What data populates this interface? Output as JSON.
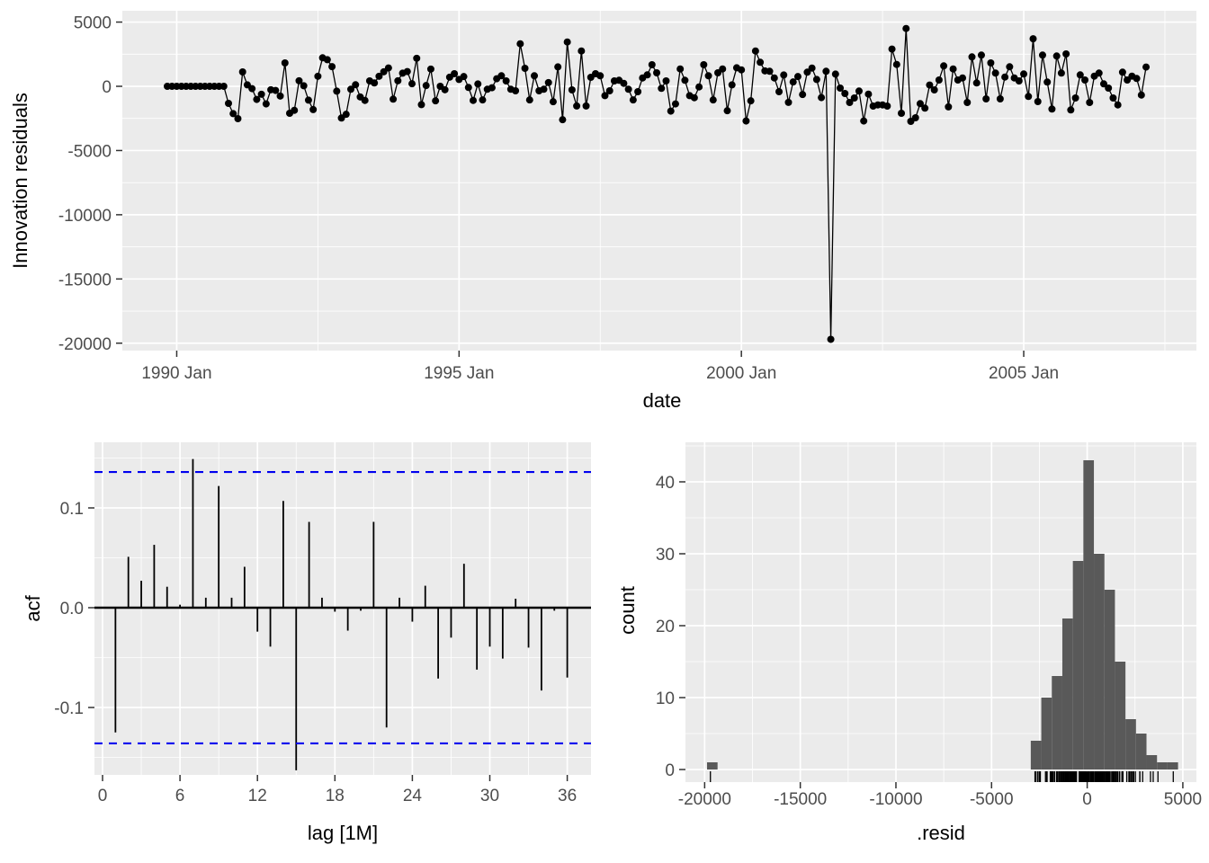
{
  "figure": {
    "background": "#FFFFFF",
    "panel_bg": "#EBEBEB",
    "grid_color": "#FFFFFF",
    "axis_text_color": "#4D4D4D",
    "axis_title_color": "#000000",
    "tick_mark_color": "#333333",
    "series_color": "#000000",
    "hist_fill": "#595959",
    "conf_line_color": "#0000EE"
  },
  "chart_data": [
    {
      "type": "line",
      "id": "innovation-residuals-time-plot",
      "xlabel": "date",
      "ylabel": "Innovation residuals",
      "x_start": "1989 Nov",
      "frequency": "monthly",
      "x_tick_labels": [
        "1990 Jan",
        "1995 Jan",
        "2000 Jan",
        "2005 Jan"
      ],
      "x_tick_month_index": [
        2,
        62,
        122,
        182
      ],
      "x_minor_month_index": [
        32,
        92,
        152,
        212
      ],
      "y_ticks": [
        5000,
        0,
        -5000,
        -10000,
        -15000,
        -20000
      ],
      "y_minor": [
        2500,
        -2500,
        -7500,
        -12500,
        -17500
      ],
      "ylim": [
        -20600,
        5100
      ],
      "points_shown": true,
      "values": [
        0,
        0,
        0,
        0,
        0,
        0,
        0,
        0,
        0,
        0,
        0,
        0,
        0,
        -1330,
        -2130,
        -2520,
        1120,
        110,
        -180,
        -1020,
        -620,
        -1370,
        -270,
        -320,
        -760,
        1820,
        -2100,
        -1870,
        430,
        40,
        -1080,
        -1810,
        780,
        2220,
        2070,
        1530,
        -380,
        -2470,
        -2180,
        -230,
        120,
        -830,
        -1100,
        420,
        260,
        780,
        1130,
        1430,
        -1000,
        430,
        1020,
        1150,
        200,
        2180,
        -1430,
        60,
        1340,
        -1130,
        0,
        -270,
        710,
        980,
        530,
        760,
        -90,
        -1100,
        180,
        -1060,
        -230,
        -110,
        590,
        820,
        420,
        -230,
        -350,
        3310,
        1400,
        -1060,
        820,
        -350,
        -230,
        290,
        -1200,
        1510,
        -2600,
        3450,
        -280,
        -1530,
        2750,
        -1530,
        700,
        980,
        820,
        -730,
        -350,
        420,
        470,
        230,
        -230,
        -1060,
        -420,
        650,
        890,
        1680,
        1050,
        -160,
        420,
        -1930,
        -1370,
        1350,
        470,
        -730,
        -890,
        -50,
        1680,
        820,
        -1060,
        1050,
        1350,
        -1900,
        110,
        1440,
        1280,
        -2700,
        -1130,
        2750,
        1870,
        1200,
        1170,
        650,
        -420,
        880,
        -1250,
        340,
        760,
        -640,
        1100,
        1420,
        530,
        -880,
        1170,
        -19700,
        950,
        -140,
        -560,
        -1260,
        -910,
        -370,
        -2700,
        -610,
        -1540,
        -1450,
        -1450,
        -1540,
        2900,
        1700,
        -2100,
        4500,
        -2730,
        -2450,
        -1350,
        -1700,
        100,
        -280,
        490,
        1590,
        -1600,
        1350,
        490,
        650,
        -1260,
        2290,
        260,
        2430,
        -980,
        1820,
        1030,
        -980,
        720,
        1520,
        650,
        420,
        960,
        -790,
        3700,
        -1190,
        2430,
        330,
        -1770,
        2360,
        1030,
        2520,
        -1840,
        -910,
        890,
        490,
        -1260,
        790,
        1030,
        190,
        -140,
        -910,
        -1450,
        1100,
        490,
        790,
        610,
        -680,
        1500
      ]
    },
    {
      "type": "bar",
      "id": "acf-plot",
      "xlabel": "lag [1M]",
      "ylabel": "acf",
      "x_ticks": [
        0,
        6,
        12,
        18,
        24,
        30,
        36
      ],
      "x_minor": [
        3,
        9,
        15,
        21,
        27,
        33
      ],
      "y_tick_labels": [
        "0.1",
        "0.0",
        "-0.1"
      ],
      "y_tick_values": [
        0.1,
        0.0,
        -0.1
      ],
      "y_minor": [
        0.15,
        0.05,
        -0.05,
        -0.15
      ],
      "ylim": [
        -0.176,
        0.166
      ],
      "conf_bounds": [
        0.136,
        -0.136
      ],
      "conf_style": "dashed",
      "lags": [
        1,
        2,
        3,
        4,
        5,
        6,
        7,
        8,
        9,
        10,
        11,
        12,
        13,
        14,
        15,
        16,
        17,
        18,
        19,
        20,
        21,
        22,
        23,
        24,
        25,
        26,
        27,
        28,
        29,
        30,
        31,
        32,
        33,
        34,
        35,
        36
      ],
      "values": [
        -0.125,
        0.051,
        0.027,
        0.063,
        0.021,
        0.003,
        0.149,
        0.01,
        0.122,
        0.01,
        0.041,
        -0.024,
        -0.039,
        0.107,
        -0.163,
        0.086,
        0.01,
        -0.004,
        -0.023,
        -0.003,
        0.086,
        -0.12,
        0.01,
        -0.014,
        0.022,
        -0.071,
        -0.03,
        0.044,
        -0.062,
        -0.039,
        -0.051,
        0.009,
        -0.04,
        -0.083,
        -0.003,
        -0.07
      ]
    },
    {
      "type": "histogram",
      "id": "resid-histogram",
      "xlabel": ".resid",
      "ylabel": "count",
      "x_ticks": [
        -20000,
        -15000,
        -10000,
        -5000,
        0,
        5000
      ],
      "x_minor": [
        -17500,
        -12500,
        -7500,
        -2500,
        2500
      ],
      "y_ticks": [
        0,
        10,
        20,
        30,
        40
      ],
      "y_minor": [
        5,
        15,
        25,
        35,
        45
      ],
      "bin_width": 550,
      "main_bins_start": -2950,
      "main_bin_counts": [
        4,
        10,
        13,
        21,
        29,
        43,
        30,
        25,
        15,
        7,
        5,
        2,
        1,
        1
      ],
      "outlier_bin": {
        "start": -19875,
        "end": -19325,
        "count": 1
      },
      "rug": true
    }
  ]
}
